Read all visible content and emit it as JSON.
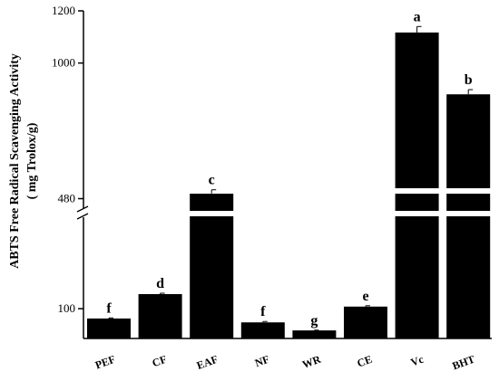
{
  "chart_data": {
    "type": "bar",
    "ylabel_line1": "ABTS Free Radical Scavenging Activity",
    "ylabel_line2": "( mg Trolox/g)",
    "categories": [
      "PEF",
      "CF",
      "EAF",
      "NF",
      "WR",
      "CE",
      "Vc",
      "BHT"
    ],
    "values": [
      67,
      149,
      500,
      54,
      27,
      107,
      1117,
      880
    ],
    "error": [
      2,
      3,
      14,
      3,
      1,
      3,
      23,
      18
    ],
    "significance": [
      "f",
      "d",
      "c",
      "f",
      "g",
      "e",
      "a",
      "b"
    ],
    "y_ticks": [
      100,
      480,
      1000,
      1200
    ],
    "y_axis_break": true,
    "bar_color": "#000000",
    "grid": false,
    "legend": "none"
  }
}
